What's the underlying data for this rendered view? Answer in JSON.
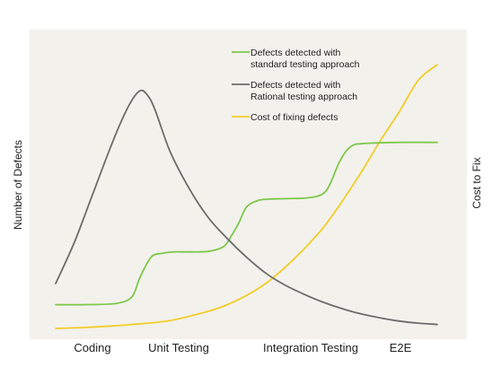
{
  "chart_data": {
    "type": "line",
    "title": "",
    "xlabel": "",
    "ylabel": "Number of Defects",
    "y2label": "Cost to Fix",
    "categories": [
      "Coding",
      "Unit Testing",
      "Integration Testing",
      "E2E"
    ],
    "xlim": [
      0,
      100
    ],
    "ylim": [
      0,
      100
    ],
    "grid": false,
    "legend_position": "top-right",
    "background_color": "#f3f1ec",
    "series": [
      {
        "name": "Defects detected with standard testing approach",
        "legend_lines": [
          "Defects detected with",
          "standard testing approach"
        ],
        "color": "#7cc84a",
        "x": [
          0,
          8,
          16,
          20,
          22,
          25,
          28,
          31,
          35,
          40,
          44,
          46,
          48,
          50,
          53,
          56,
          60,
          66,
          70,
          72,
          74,
          76,
          78,
          80,
          84,
          90,
          100
        ],
        "y": [
          9,
          9,
          9.5,
          12,
          19,
          27,
          28.5,
          29,
          29,
          29.2,
          31,
          35,
          40,
          46,
          48.5,
          49,
          49.2,
          49.5,
          51,
          55,
          62,
          67,
          69.5,
          70,
          70.3,
          70.5,
          70.5
        ]
      },
      {
        "name": "Defects detected with Rational testing approach",
        "legend_lines": [
          "Defects detected with",
          "Rational testing approach"
        ],
        "color": "#6c6c6c",
        "x": [
          0,
          5,
          10,
          15,
          19,
          22,
          24,
          26,
          30,
          35,
          40,
          45,
          50,
          55,
          60,
          65,
          70,
          75,
          80,
          85,
          90,
          95,
          100
        ],
        "y": [
          17,
          33,
          52,
          71,
          84,
          90,
          88.5,
          83,
          67,
          53,
          42,
          34,
          27,
          21,
          16.5,
          13,
          10,
          7.5,
          5.5,
          4,
          2.8,
          2,
          1.5
        ]
      },
      {
        "name": "Cost of fixing defects",
        "legend_lines": [
          "Cost of fixing defects"
        ],
        "color": "#f2cd28",
        "x": [
          0,
          10,
          20,
          30,
          40,
          45,
          50,
          55,
          60,
          65,
          70,
          75,
          80,
          85,
          90,
          95,
          100
        ],
        "y": [
          0,
          0.5,
          1.5,
          3,
          6.5,
          9,
          12.5,
          17,
          23,
          30,
          38,
          48,
          59,
          71,
          82,
          94,
          100
        ]
      }
    ]
  }
}
